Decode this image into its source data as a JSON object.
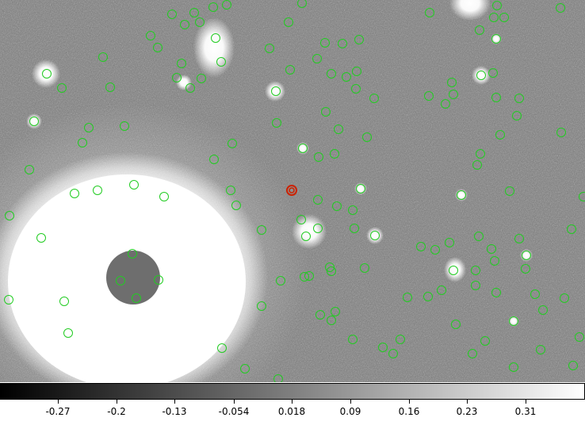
{
  "image": {
    "background_color": "#7a7a7a",
    "marker_color": "#22cc22",
    "target_color": "#cc2200"
  },
  "colorbar": {
    "gradient": [
      "#000000",
      "#ffffff"
    ],
    "ticks": [
      "-0.27",
      "-0.2",
      "-0.13",
      "-0.054",
      "0.018",
      "0.09",
      "0.16",
      "0.23",
      "0.31"
    ]
  }
}
